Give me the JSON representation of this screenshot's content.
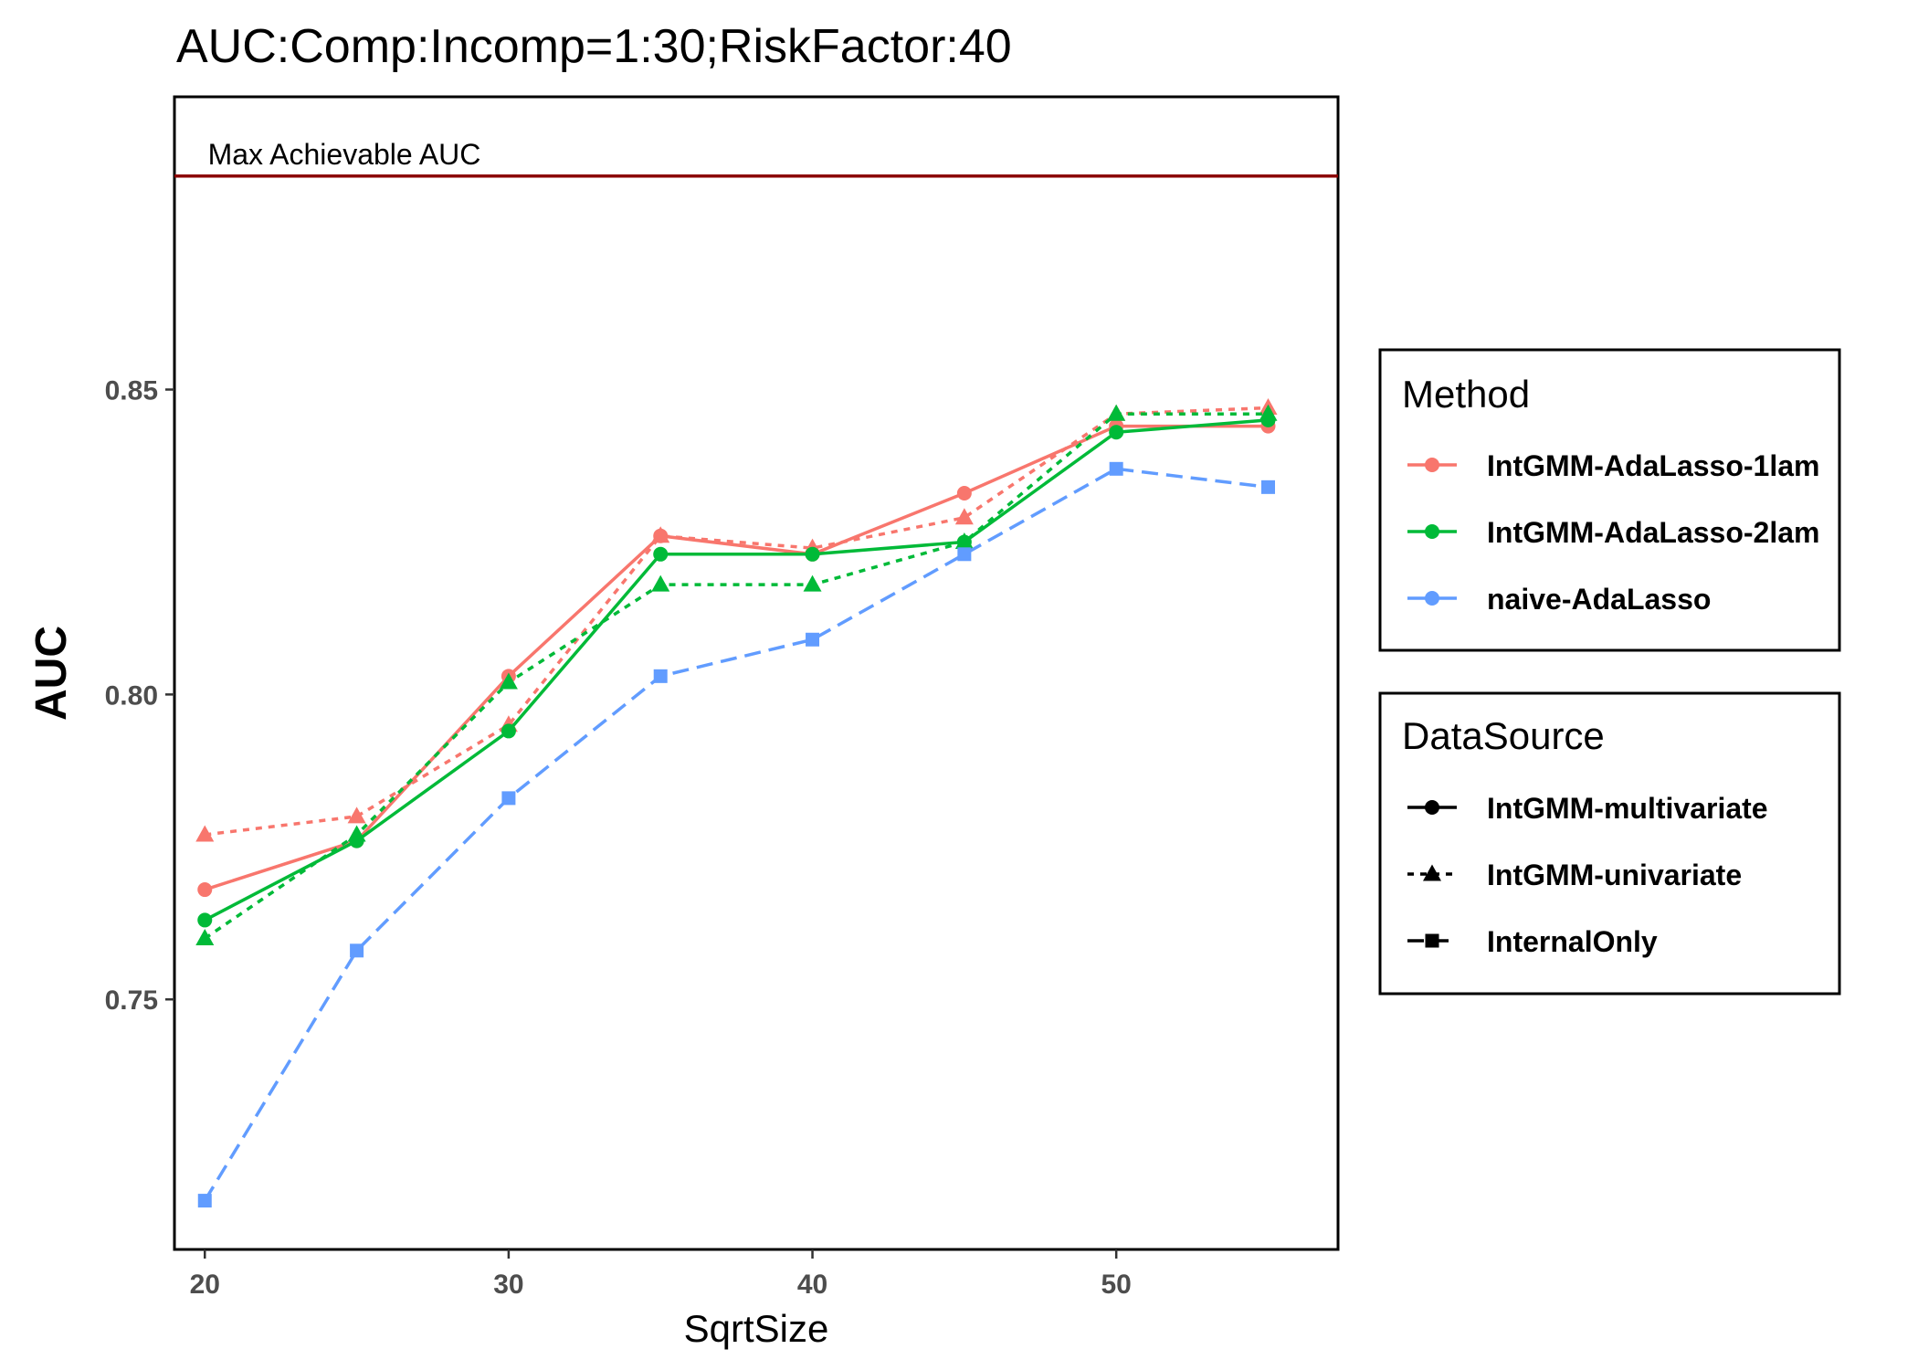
{
  "chart_data": {
    "type": "line",
    "title": "AUC:Comp:Incomp=1:30;RiskFactor:40",
    "xlabel": "SqrtSize",
    "ylabel": "AUC",
    "xlim": [
      19,
      57.3
    ],
    "ylim": [
      0.709,
      0.898
    ],
    "x_ticks": [
      20,
      30,
      40,
      50
    ],
    "y_ticks": [
      0.75,
      0.8,
      0.85
    ],
    "y_tick_labels": [
      "0.75",
      "0.80",
      "0.85"
    ],
    "grid": false,
    "reference_line": {
      "y": 0.885,
      "label": "Max Achievable AUC",
      "color": "#8B0000"
    },
    "legend_placement": "right",
    "legends": [
      {
        "title": "Method",
        "entries": [
          {
            "label": "IntGMM-AdaLasso-1lam",
            "color": "#F8766D"
          },
          {
            "label": "IntGMM-AdaLasso-2lam",
            "color": "#00BA38"
          },
          {
            "label": "naive-AdaLasso",
            "color": "#619CFF"
          }
        ]
      },
      {
        "title": "DataSource",
        "entries": [
          {
            "label": "IntGMM-multivariate",
            "linetype": "solid",
            "shape": "circle"
          },
          {
            "label": "IntGMM-univariate",
            "linetype": "dotted",
            "shape": "triangle"
          },
          {
            "label": "InternalOnly",
            "linetype": "dashed",
            "shape": "square"
          }
        ]
      }
    ],
    "series": [
      {
        "method": "IntGMM-AdaLasso-1lam",
        "source": "IntGMM-multivariate",
        "color": "#F8766D",
        "linetype": "solid",
        "shape": "circle",
        "x": [
          20,
          25,
          30,
          35,
          40,
          45,
          50,
          55
        ],
        "y": [
          0.768,
          0.776,
          0.803,
          0.826,
          0.823,
          0.833,
          0.844,
          0.844
        ]
      },
      {
        "method": "IntGMM-AdaLasso-1lam",
        "source": "IntGMM-univariate",
        "color": "#F8766D",
        "linetype": "dotted",
        "shape": "triangle",
        "x": [
          20,
          25,
          30,
          35,
          40,
          45,
          50,
          55
        ],
        "y": [
          0.777,
          0.78,
          0.795,
          0.826,
          0.824,
          0.829,
          0.846,
          0.847
        ]
      },
      {
        "method": "IntGMM-AdaLasso-2lam",
        "source": "IntGMM-multivariate",
        "color": "#00BA38",
        "linetype": "solid",
        "shape": "circle",
        "x": [
          20,
          25,
          30,
          35,
          40,
          45,
          50,
          55
        ],
        "y": [
          0.763,
          0.776,
          0.794,
          0.823,
          0.823,
          0.825,
          0.843,
          0.845
        ]
      },
      {
        "method": "IntGMM-AdaLasso-2lam",
        "source": "IntGMM-univariate",
        "color": "#00BA38",
        "linetype": "dotted",
        "shape": "triangle",
        "x": [
          20,
          25,
          30,
          35,
          40,
          45,
          50,
          55
        ],
        "y": [
          0.76,
          0.777,
          0.802,
          0.818,
          0.818,
          0.825,
          0.846,
          0.846
        ]
      },
      {
        "method": "naive-AdaLasso",
        "source": "InternalOnly",
        "color": "#619CFF",
        "linetype": "dashed",
        "shape": "square",
        "x": [
          20,
          25,
          30,
          35,
          40,
          45,
          50,
          55
        ],
        "y": [
          0.717,
          0.758,
          0.783,
          0.803,
          0.809,
          0.823,
          0.837,
          0.834
        ]
      }
    ]
  }
}
